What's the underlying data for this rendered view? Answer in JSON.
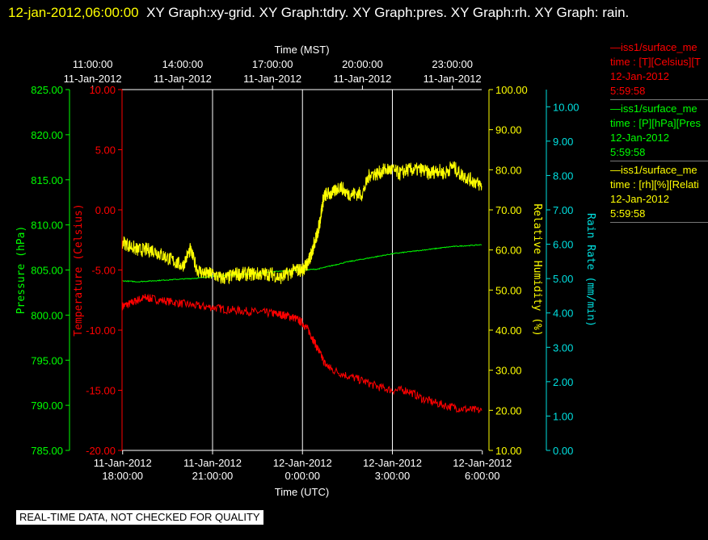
{
  "header": {
    "timestamp": "12-jan-2012,06:00:00",
    "graphs": "XY Graph:xy-grid.  XY Graph:tdry.  XY Graph:pres.  XY Graph:rh.  XY Graph: rain."
  },
  "legend": [
    {
      "name": "—iss1/surface_me",
      "units": "time : [T][Celsius][T",
      "date": "12-Jan-2012",
      "time": "5:59:58",
      "color": "#ff0000"
    },
    {
      "name": "—iss1/surface_me",
      "units": "time : [P][hPa][Pres",
      "date": "12-Jan-2012",
      "time": "5:59:58",
      "color": "#00ff00"
    },
    {
      "name": "—iss1/surface_me",
      "units": "time : [rh][%][Relati",
      "date": "12-Jan-2012",
      "time": "5:59:58",
      "color": "#ffff00"
    }
  ],
  "footer": {
    "qc_note": "REAL-TIME DATA, NOT CHECKED FOR QUALITY"
  },
  "chart_data": {
    "type": "line",
    "top_axis": {
      "label": "Time (MST)",
      "ticks": [
        {
          "x": 17.0,
          "lines": [
            "11:00:00",
            "11-Jan-2012"
          ]
        },
        {
          "x": 20.0,
          "lines": [
            "14:00:00",
            "11-Jan-2012"
          ]
        },
        {
          "x": 23.0,
          "lines": [
            "17:00:00",
            "11-Jan-2012"
          ]
        },
        {
          "x": 26.0,
          "lines": [
            "20:00:00",
            "11-Jan-2012"
          ]
        },
        {
          "x": 29.0,
          "lines": [
            "23:00:00",
            "11-Jan-2012"
          ]
        }
      ]
    },
    "bottom_axis": {
      "label": "Time (UTC)",
      "xlim": [
        17.98,
        29.98
      ],
      "ticks": [
        {
          "x": 18.0,
          "lines": [
            "11-Jan-2012",
            "18:00:00"
          ]
        },
        {
          "x": 21.0,
          "lines": [
            "11-Jan-2012",
            "21:00:00"
          ]
        },
        {
          "x": 24.0,
          "lines": [
            "12-Jan-2012",
            "0:00:00"
          ]
        },
        {
          "x": 27.0,
          "lines": [
            "12-Jan-2012",
            "3:00:00"
          ]
        },
        {
          "x": 30.0,
          "lines": [
            "12-Jan-2012",
            "6:00:00"
          ]
        }
      ]
    },
    "grid": "vertical",
    "axes": {
      "pressure": {
        "label": "Pressure (hPa)",
        "color": "#00ff00",
        "ylim": [
          785,
          825
        ],
        "ticks": [
          "825.00",
          "820.00",
          "815.00",
          "810.00",
          "805.00",
          "800.00",
          "795.00",
          "790.00",
          "785.00"
        ]
      },
      "temperature": {
        "label": "Temperature (Celsius)",
        "color": "#ff0000",
        "ylim": [
          -20,
          10
        ],
        "ticks": [
          "10.00",
          "5.00",
          "0.00",
          "-5.00",
          "-10.00",
          "-15.00",
          "-20.00"
        ]
      },
      "humidity": {
        "label": "Relative Humidity (%)",
        "color": "#ffff00",
        "ylim": [
          10,
          100
        ],
        "ticks": [
          "100.00",
          "90.00",
          "80.00",
          "70.00",
          "60.00",
          "50.00",
          "40.00",
          "30.00",
          "20.00",
          "10.00"
        ]
      },
      "rain": {
        "label": "Rain Rate (mm/min)",
        "color": "#00e0e0",
        "ylim": [
          0,
          10.5
        ],
        "ticks": [
          "10.00",
          "9.00",
          "8.00",
          "7.00",
          "6.00",
          "5.00",
          "4.00",
          "3.00",
          "2.00",
          "1.00",
          "0.00"
        ]
      }
    },
    "series": [
      {
        "axis": "temperature",
        "color": "#ff0000",
        "x": [
          18.0,
          18.25,
          18.5,
          18.75,
          19.0,
          19.5,
          20.0,
          20.5,
          21.0,
          21.5,
          22.0,
          22.5,
          23.0,
          23.25,
          23.5,
          23.75,
          24.0,
          24.2,
          24.4,
          24.6,
          24.75,
          25.0,
          25.5,
          26.0,
          26.5,
          27.0,
          27.5,
          28.0,
          28.5,
          29.0,
          29.5,
          29.98
        ],
        "y": [
          -8.0,
          -7.8,
          -7.5,
          -7.3,
          -7.4,
          -7.6,
          -7.8,
          -8.0,
          -8.1,
          -8.3,
          -8.4,
          -8.5,
          -8.6,
          -8.7,
          -8.8,
          -9.0,
          -9.4,
          -10.0,
          -11.0,
          -12.0,
          -12.8,
          -13.3,
          -13.8,
          -14.2,
          -14.7,
          -15.0,
          -15.0,
          -15.7,
          -16.1,
          -16.4,
          -16.6,
          -16.7
        ]
      },
      {
        "axis": "pressure",
        "color": "#00ff00",
        "x": [
          18.0,
          18.5,
          19.0,
          19.5,
          20.0,
          20.5,
          21.0,
          21.5,
          22.0,
          22.5,
          23.0,
          23.5,
          24.0,
          24.5,
          25.0,
          25.5,
          26.0,
          26.5,
          27.0,
          27.5,
          28.0,
          28.5,
          29.0,
          29.5,
          29.98
        ],
        "y": [
          803.8,
          803.7,
          803.8,
          803.9,
          804.0,
          804.1,
          804.3,
          804.4,
          804.5,
          804.6,
          804.8,
          804.9,
          805.0,
          805.1,
          805.5,
          805.9,
          806.2,
          806.5,
          806.8,
          807.0,
          807.2,
          807.4,
          807.6,
          807.7,
          807.8
        ]
      },
      {
        "axis": "humidity",
        "color": "#ffff00",
        "x": [
          18.0,
          18.25,
          18.5,
          18.75,
          19.0,
          19.25,
          19.5,
          19.75,
          20.0,
          20.25,
          20.5,
          20.75,
          21.0,
          21.25,
          21.5,
          21.75,
          22.0,
          22.25,
          22.5,
          22.75,
          23.0,
          23.25,
          23.5,
          23.75,
          24.0,
          24.1,
          24.2,
          24.3,
          24.4,
          24.5,
          24.6,
          24.7,
          24.8,
          25.0,
          25.25,
          25.5,
          25.75,
          26.0,
          26.25,
          26.5,
          26.75,
          27.0,
          27.25,
          27.5,
          27.75,
          28.0,
          28.25,
          28.5,
          28.75,
          29.0,
          29.25,
          29.5,
          29.75,
          29.98
        ],
        "y": [
          62,
          61,
          60,
          60,
          60,
          59,
          58,
          57,
          56,
          60,
          55,
          54,
          54,
          53,
          53,
          54,
          54,
          54,
          54,
          54,
          54,
          53,
          54,
          55,
          55,
          56,
          57,
          59,
          62,
          64,
          68,
          73,
          74,
          74,
          76,
          74,
          74,
          74,
          79,
          79,
          80,
          80,
          79,
          80,
          80,
          80,
          79,
          80,
          79,
          81,
          79,
          78,
          77,
          76
        ]
      }
    ]
  }
}
